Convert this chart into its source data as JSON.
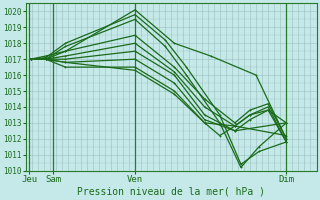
{
  "xlabel": "Pression niveau de la mer( hPa )",
  "bg_color": "#c5e8e8",
  "line_color": "#1a6b1a",
  "grid_color": "#9bbfbf",
  "ylim": [
    1010,
    1020.5
  ],
  "yticks": [
    1010,
    1011,
    1012,
    1013,
    1014,
    1015,
    1016,
    1017,
    1018,
    1019,
    1020
  ],
  "xtick_labels": [
    "Jeu",
    "Sam",
    "Ven",
    "Dim"
  ],
  "xtick_pos": [
    0,
    0.8,
    3.5,
    8.5
  ],
  "xlim": [
    -0.1,
    9.5
  ],
  "lines": [
    {
      "x": [
        0.05,
        0.55,
        1.2,
        3.5,
        4.8,
        6.0,
        7.5,
        8.5
      ],
      "y": [
        1017.0,
        1017.2,
        1017.5,
        1020.1,
        1018.0,
        1017.2,
        1016.0,
        1012.0
      ]
    },
    {
      "x": [
        0.05,
        0.55,
        1.2,
        3.5,
        4.5,
        5.2,
        6.3,
        7.0,
        7.6,
        8.5
      ],
      "y": [
        1017.0,
        1017.1,
        1018.0,
        1019.8,
        1018.2,
        1016.5,
        1013.5,
        1010.4,
        1011.2,
        1011.8
      ]
    },
    {
      "x": [
        0.05,
        0.55,
        1.2,
        3.5,
        4.5,
        5.2,
        6.3,
        7.0,
        7.6,
        8.5
      ],
      "y": [
        1017.0,
        1017.0,
        1017.8,
        1019.5,
        1017.8,
        1016.0,
        1013.0,
        1010.2,
        1011.5,
        1013.0
      ]
    },
    {
      "x": [
        0.05,
        0.55,
        1.2,
        3.5,
        4.8,
        5.8,
        6.8,
        7.3,
        7.9,
        8.5
      ],
      "y": [
        1017.0,
        1017.0,
        1017.5,
        1018.5,
        1016.5,
        1014.5,
        1013.0,
        1013.8,
        1014.2,
        1012.0
      ]
    },
    {
      "x": [
        0.05,
        0.55,
        1.2,
        3.5,
        4.8,
        5.8,
        6.8,
        7.3,
        7.9,
        8.5
      ],
      "y": [
        1017.0,
        1017.0,
        1017.2,
        1018.0,
        1016.2,
        1014.0,
        1012.8,
        1013.5,
        1014.0,
        1011.8
      ]
    },
    {
      "x": [
        0.05,
        0.55,
        1.2,
        3.5,
        4.8,
        5.8,
        6.8,
        7.3,
        7.9,
        8.5
      ],
      "y": [
        1017.0,
        1017.0,
        1017.0,
        1017.5,
        1016.0,
        1013.5,
        1012.5,
        1013.2,
        1013.8,
        1013.0
      ]
    },
    {
      "x": [
        0.05,
        0.55,
        1.2,
        3.5,
        4.8,
        5.8,
        6.8,
        8.5
      ],
      "y": [
        1017.0,
        1017.0,
        1016.8,
        1017.0,
        1015.5,
        1013.2,
        1012.5,
        1013.0
      ]
    },
    {
      "x": [
        0.05,
        0.55,
        1.2,
        3.5,
        4.8,
        5.8,
        6.3,
        6.8,
        7.3,
        7.9,
        8.5
      ],
      "y": [
        1017.0,
        1017.0,
        1016.5,
        1016.5,
        1015.0,
        1013.0,
        1012.2,
        1012.8,
        1013.5,
        1013.8,
        1011.8
      ]
    },
    {
      "x": [
        0.05,
        0.55,
        1.2,
        3.5,
        4.8,
        5.8,
        6.8,
        8.5
      ],
      "y": [
        1017.0,
        1017.0,
        1016.8,
        1016.3,
        1014.8,
        1013.0,
        1012.8,
        1012.2
      ]
    }
  ]
}
